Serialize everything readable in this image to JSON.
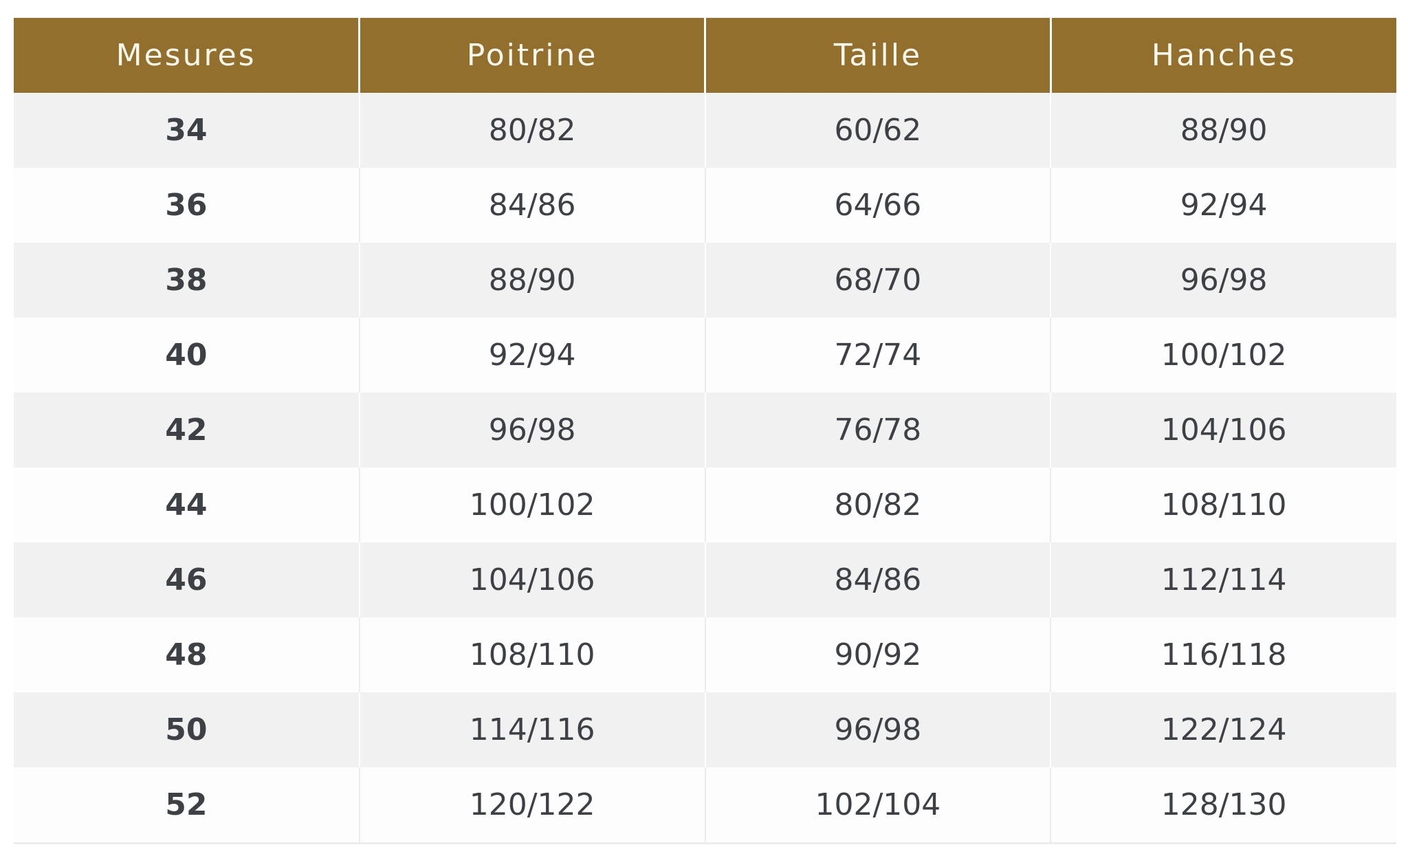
{
  "colors": {
    "header_bg": "#936f2d",
    "header_text": "#fdf8ee",
    "row_alt": "#f1f1f1",
    "text": "#3d4145"
  },
  "table": {
    "headers": [
      "Mesures",
      "Poitrine",
      "Taille",
      "Hanches"
    ],
    "rows": [
      [
        "34",
        "80/82",
        "60/62",
        "88/90"
      ],
      [
        "36",
        "84/86",
        "64/66",
        "92/94"
      ],
      [
        "38",
        "88/90",
        "68/70",
        "96/98"
      ],
      [
        "40",
        "92/94",
        "72/74",
        "100/102"
      ],
      [
        "42",
        "96/98",
        "76/78",
        "104/106"
      ],
      [
        "44",
        "100/102",
        "80/82",
        "108/110"
      ],
      [
        "46",
        "104/106",
        "84/86",
        "112/114"
      ],
      [
        "48",
        "108/110",
        "90/92",
        "116/118"
      ],
      [
        "50",
        "114/116",
        "96/98",
        "122/124"
      ],
      [
        "52",
        "120/122",
        "102/104",
        "128/130"
      ]
    ]
  }
}
